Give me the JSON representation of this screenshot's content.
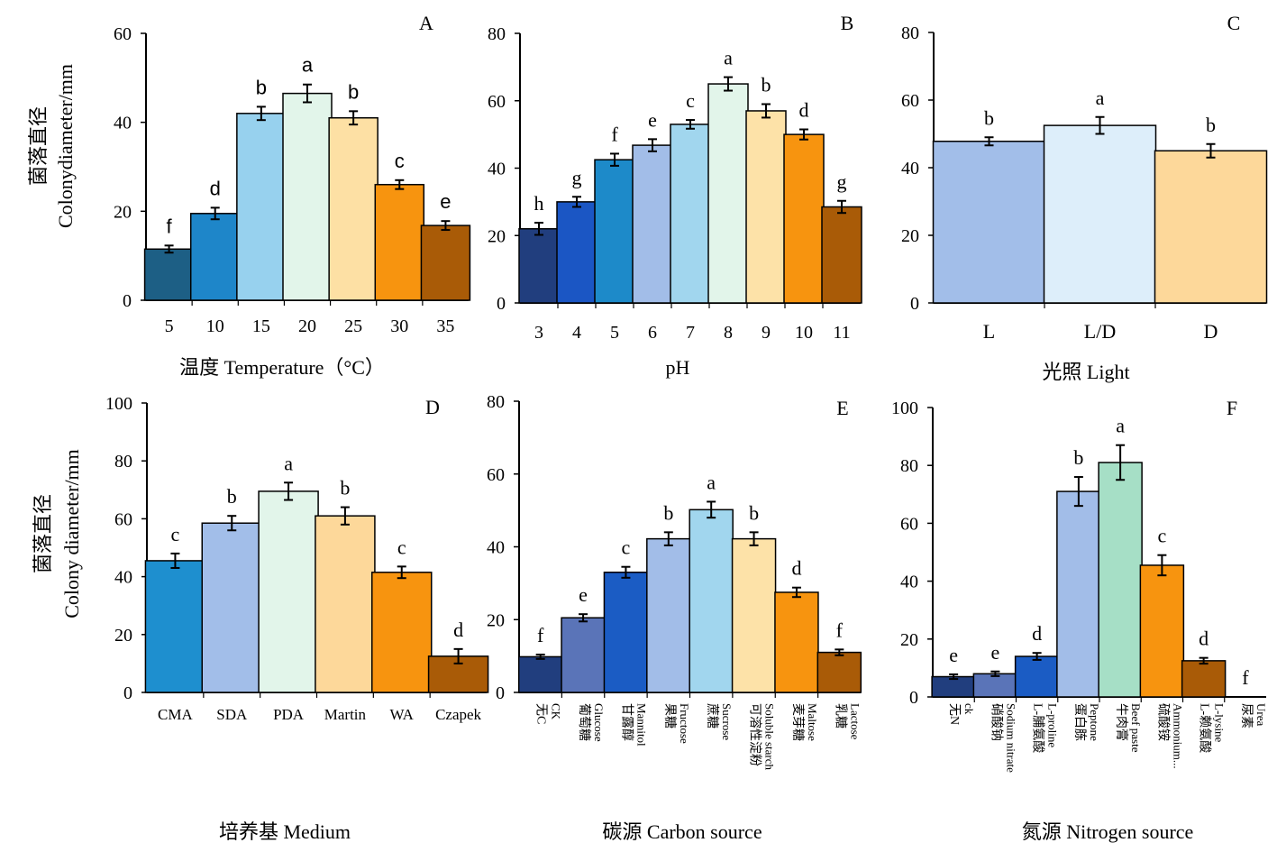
{
  "chart_data": [
    {
      "type": "bar",
      "panel_label": "A",
      "ylabel_cn": "菌落直径",
      "ylabel_en": "Colonydiameter/mm",
      "xlabel": "温度 Temperature（°C）",
      "ylim": [
        0,
        60
      ],
      "yticks": [
        "0",
        "20",
        "40",
        "60"
      ],
      "categories": [
        "5",
        "10",
        "15",
        "20",
        "25",
        "30",
        "35"
      ],
      "values": [
        11.5,
        19.5,
        42,
        46.5,
        41,
        26,
        16.8
      ],
      "errors": [
        0.8,
        1.3,
        1.5,
        2.0,
        1.5,
        1.0,
        1.0
      ],
      "letters": [
        "f",
        "d",
        "b",
        "a",
        "b",
        "c",
        "e"
      ],
      "colors": [
        "#1d5f85",
        "#1e86c9",
        "#97d1ee",
        "#e2f5ea",
        "#fde0a4",
        "#f7940f",
        "#a95b07"
      ]
    },
    {
      "type": "bar",
      "panel_label": "B",
      "xlabel": "pH",
      "ylim": [
        0,
        80
      ],
      "yticks": [
        "0",
        "20",
        "40",
        "60",
        "80"
      ],
      "categories": [
        "3",
        "4",
        "5",
        "6",
        "7",
        "8",
        "9",
        "10",
        "11"
      ],
      "values": [
        22,
        30,
        42.5,
        46.8,
        53,
        65,
        57,
        50,
        28.5
      ],
      "errors": [
        1.8,
        1.5,
        1.8,
        1.8,
        1.3,
        2.0,
        2.0,
        1.5,
        1.8
      ],
      "letters": [
        "h",
        "g",
        "f",
        "e",
        "c",
        "a",
        "b",
        "d",
        "g"
      ],
      "colors": [
        "#213e7e",
        "#1b56c4",
        "#1d8ac9",
        "#a2bde8",
        "#a1d6ee",
        "#e2f5ea",
        "#fde2a8",
        "#f7940f",
        "#a95b07"
      ]
    },
    {
      "type": "bar",
      "panel_label": "C",
      "xlabel": "光照 Light",
      "ylim": [
        0,
        80
      ],
      "yticks": [
        "0",
        "20",
        "40",
        "60",
        "80"
      ],
      "categories": [
        "L",
        "L/D",
        "D"
      ],
      "values": [
        47.8,
        52.5,
        45
      ],
      "errors": [
        1.2,
        2.5,
        2.0
      ],
      "letters": [
        "b",
        "a",
        "b"
      ],
      "colors": [
        "#a2bee9",
        "#ddeefa",
        "#fdd89a"
      ]
    },
    {
      "type": "bar",
      "panel_label": "D",
      "ylabel_cn": "菌落直径",
      "ylabel_en": "Colony diameter/mm",
      "xlabel": "培养基  Medium",
      "ylim": [
        0,
        100
      ],
      "yticks": [
        "0",
        "20",
        "40",
        "60",
        "80",
        "100"
      ],
      "categories": [
        "CMA",
        "SDA",
        "PDA",
        "Martin",
        "WA",
        "Czapek"
      ],
      "values": [
        45.5,
        58.5,
        69.5,
        61,
        41.5,
        12.5
      ],
      "errors": [
        2.5,
        2.5,
        3.0,
        3.0,
        2.0,
        2.5
      ],
      "letters": [
        "c",
        "b",
        "a",
        "b",
        "c",
        "d"
      ],
      "colors": [
        "#1e8fcf",
        "#a2bee9",
        "#e2f5ea",
        "#fdd89a",
        "#f7940f",
        "#a95b07"
      ]
    },
    {
      "type": "bar",
      "panel_label": "E",
      "xlabel": "碳源 Carbon source",
      "ylim": [
        0,
        80
      ],
      "yticks": [
        "0",
        "20",
        "40",
        "60",
        "80"
      ],
      "categories": [
        "无C CK",
        "葡萄糖 Glucose",
        "甘露醇 Mannitol",
        "果糖 Fructose",
        "蔗糖 Sucrose",
        "可溶性淀粉 Soluble starch",
        "麦芽糖 Maltose",
        "乳糖 Lactose"
      ],
      "labels_cn": [
        "无C",
        "葡萄糖",
        "甘露醇",
        "果糖",
        "蔗糖",
        "可溶性淀粉",
        "麦芽糖",
        "乳糖"
      ],
      "labels_en": [
        "CK",
        "Glucose",
        "Mannitol",
        "Fructose",
        "Sucrose",
        "Soluble starch",
        "Maltose",
        "Lactose"
      ],
      "values": [
        9.8,
        20.5,
        33,
        42.2,
        50.2,
        42.2,
        27.5,
        11
      ],
      "errors": [
        0.6,
        1.0,
        1.5,
        1.8,
        2.2,
        1.8,
        1.3,
        0.8
      ],
      "letters": [
        "f",
        "e",
        "c",
        "b",
        "a",
        "b",
        "d",
        "f"
      ],
      "colors": [
        "#213e7e",
        "#5a74b8",
        "#1b5cc4",
        "#a2bde8",
        "#a1d6ee",
        "#fde2a8",
        "#f7940f",
        "#a95b07"
      ]
    },
    {
      "type": "bar",
      "panel_label": "F",
      "xlabel": "氮源 Nitrogen source",
      "ylim": [
        0,
        100
      ],
      "yticks": [
        "0",
        "20",
        "40",
        "60",
        "80",
        "100"
      ],
      "categories": [
        "无N ck",
        "硝酸钠 Sodium nitrate",
        "L-脯氨酸 L-proline",
        "蛋白胨 Peptone",
        "牛肉膏 Beef paste",
        "硫酸铵 Ammonium...",
        "L-赖氨酸 L-lysine",
        "尿素 Urea"
      ],
      "labels_cn": [
        "无N",
        "硝酸钠",
        "L-脯氨酸",
        "蛋白胨",
        "牛肉膏",
        "硫酸铵",
        "L-赖氨酸",
        "尿素"
      ],
      "labels_en": [
        "ck",
        "Sodium nitrate",
        "L-proline",
        "Peptone",
        "Beef paste",
        "Ammonium...",
        "L-lysine",
        "Urea"
      ],
      "values": [
        7,
        8,
        14,
        71,
        81,
        45.5,
        12.5,
        0
      ],
      "errors": [
        0.8,
        0.8,
        1.2,
        5.0,
        6.0,
        3.5,
        1.0,
        0
      ],
      "letters": [
        "e",
        "e",
        "d",
        "b",
        "a",
        "c",
        "d",
        "f"
      ],
      "colors": [
        "#213e7e",
        "#5a74b8",
        "#1b5cc4",
        "#a2bde8",
        "#a6dfc6",
        "#f7940f",
        "#a95b07",
        "#ffffff"
      ]
    }
  ]
}
